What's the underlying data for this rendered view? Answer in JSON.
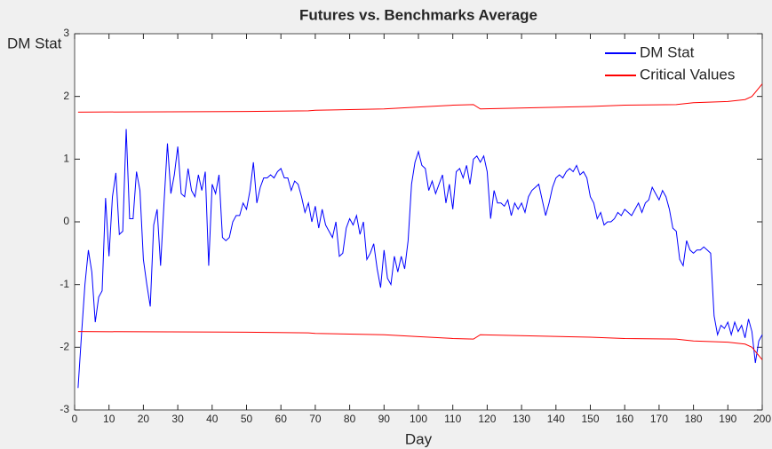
{
  "chart_data": {
    "type": "line",
    "title": "Futures vs. Benchmarks Average",
    "x_label": "Day",
    "y_label": "DM Stat",
    "xlim": [
      0,
      200
    ],
    "ylim": [
      -3,
      3
    ],
    "xticks": [
      0,
      10,
      20,
      30,
      40,
      50,
      60,
      70,
      80,
      90,
      100,
      110,
      120,
      130,
      140,
      150,
      160,
      170,
      180,
      190,
      200
    ],
    "yticks": [
      -3,
      -2,
      -1,
      0,
      1,
      2,
      3
    ],
    "legend": "upper right",
    "series": [
      {
        "name": "DM Stat",
        "color": "#0000ff",
        "x": [
          1,
          2,
          3,
          4,
          5,
          6,
          7,
          8,
          9,
          10,
          11,
          12,
          13,
          14,
          15,
          16,
          17,
          18,
          19,
          20,
          21,
          22,
          23,
          24,
          25,
          26,
          27,
          28,
          29,
          30,
          31,
          32,
          33,
          34,
          35,
          36,
          37,
          38,
          39,
          40,
          41,
          42,
          43,
          44,
          45,
          46,
          47,
          48,
          49,
          50,
          51,
          52,
          53,
          54,
          55,
          56,
          57,
          58,
          59,
          60,
          61,
          62,
          63,
          64,
          65,
          66,
          67,
          68,
          69,
          70,
          71,
          72,
          73,
          74,
          75,
          76,
          77,
          78,
          79,
          80,
          81,
          82,
          83,
          84,
          85,
          86,
          87,
          88,
          89,
          90,
          91,
          92,
          93,
          94,
          95,
          96,
          97,
          98,
          99,
          100,
          101,
          102,
          103,
          104,
          105,
          106,
          107,
          108,
          109,
          110,
          111,
          112,
          113,
          114,
          115,
          116,
          117,
          118,
          119,
          120,
          121,
          122,
          123,
          124,
          125,
          126,
          127,
          128,
          129,
          130,
          131,
          132,
          133,
          134,
          135,
          136,
          137,
          138,
          139,
          140,
          141,
          142,
          143,
          144,
          145,
          146,
          147,
          148,
          149,
          150,
          151,
          152,
          153,
          154,
          155,
          156,
          157,
          158,
          159,
          160,
          161,
          162,
          163,
          164,
          165,
          166,
          167,
          168,
          169,
          170,
          171,
          172,
          173,
          174,
          175,
          176,
          177,
          178,
          179,
          180,
          181,
          182,
          183,
          184,
          185,
          186,
          187,
          188,
          189,
          190,
          191,
          192,
          193,
          194,
          195,
          196,
          197,
          198,
          199,
          200
        ],
        "values": [
          -2.65,
          -1.8,
          -1.0,
          -0.45,
          -0.8,
          -1.6,
          -1.2,
          -1.1,
          0.38,
          -0.55,
          0.4,
          0.78,
          -0.2,
          -0.15,
          1.48,
          0.05,
          0.05,
          0.8,
          0.5,
          -0.6,
          -1.0,
          -1.35,
          -0.05,
          0.2,
          -0.7,
          0.3,
          1.25,
          0.45,
          0.75,
          1.2,
          0.45,
          0.4,
          0.85,
          0.5,
          0.4,
          0.75,
          0.5,
          0.8,
          -0.7,
          0.6,
          0.45,
          0.75,
          -0.25,
          -0.3,
          -0.25,
          0.0,
          0.1,
          0.1,
          0.3,
          0.2,
          0.5,
          0.95,
          0.3,
          0.55,
          0.7,
          0.7,
          0.75,
          0.7,
          0.8,
          0.85,
          0.7,
          0.7,
          0.5,
          0.65,
          0.6,
          0.4,
          0.15,
          0.3,
          0.0,
          0.25,
          -0.1,
          0.2,
          -0.05,
          -0.15,
          -0.25,
          0.0,
          -0.55,
          -0.5,
          -0.1,
          0.05,
          -0.05,
          0.1,
          -0.2,
          0.0,
          -0.6,
          -0.5,
          -0.35,
          -0.75,
          -1.05,
          -0.45,
          -0.9,
          -1.0,
          -0.55,
          -0.8,
          -0.55,
          -0.75,
          -0.3,
          0.6,
          0.95,
          1.12,
          0.9,
          0.85,
          0.5,
          0.65,
          0.45,
          0.6,
          0.75,
          0.3,
          0.6,
          0.2,
          0.8,
          0.85,
          0.7,
          0.9,
          0.6,
          1.0,
          1.05,
          0.95,
          1.05,
          0.8,
          0.05,
          0.5,
          0.3,
          0.3,
          0.25,
          0.35,
          0.1,
          0.3,
          0.2,
          0.3,
          0.15,
          0.4,
          0.5,
          0.55,
          0.6,
          0.35,
          0.1,
          0.3,
          0.55,
          0.7,
          0.75,
          0.7,
          0.8,
          0.85,
          0.8,
          0.9,
          0.75,
          0.8,
          0.7,
          0.4,
          0.3,
          0.05,
          0.15,
          -0.05,
          0.0,
          0.0,
          0.05,
          0.15,
          0.1,
          0.2,
          0.15,
          0.1,
          0.2,
          0.3,
          0.15,
          0.3,
          0.35,
          0.55,
          0.45,
          0.35,
          0.5,
          0.4,
          0.2,
          -0.1,
          -0.15,
          -0.6,
          -0.7,
          -0.3,
          -0.45,
          -0.5,
          -0.45,
          -0.45,
          -0.4,
          -0.45,
          -0.5,
          -1.5,
          -1.8,
          -1.65,
          -1.7,
          -1.6,
          -1.8,
          -1.6,
          -1.75,
          -1.65,
          -1.85,
          -1.55,
          -1.75,
          -2.25,
          -1.9,
          -1.8
        ]
      },
      {
        "name": "Critical Values",
        "color": "#ff0000",
        "x": [
          1,
          50,
          68,
          70,
          90,
          100,
          110,
          116,
          118,
          150,
          160,
          175,
          180,
          190,
          195,
          197,
          200
        ],
        "values": [
          1.75,
          1.76,
          1.77,
          1.78,
          1.8,
          1.83,
          1.86,
          1.87,
          1.8,
          1.84,
          1.86,
          1.87,
          1.9,
          1.92,
          1.95,
          2.0,
          2.2
        ],
        "lower": [
          -1.75,
          -1.76,
          -1.77,
          -1.78,
          -1.8,
          -1.83,
          -1.86,
          -1.87,
          -1.8,
          -1.84,
          -1.86,
          -1.87,
          -1.9,
          -1.92,
          -1.95,
          -2.0,
          -2.2
        ]
      }
    ]
  }
}
